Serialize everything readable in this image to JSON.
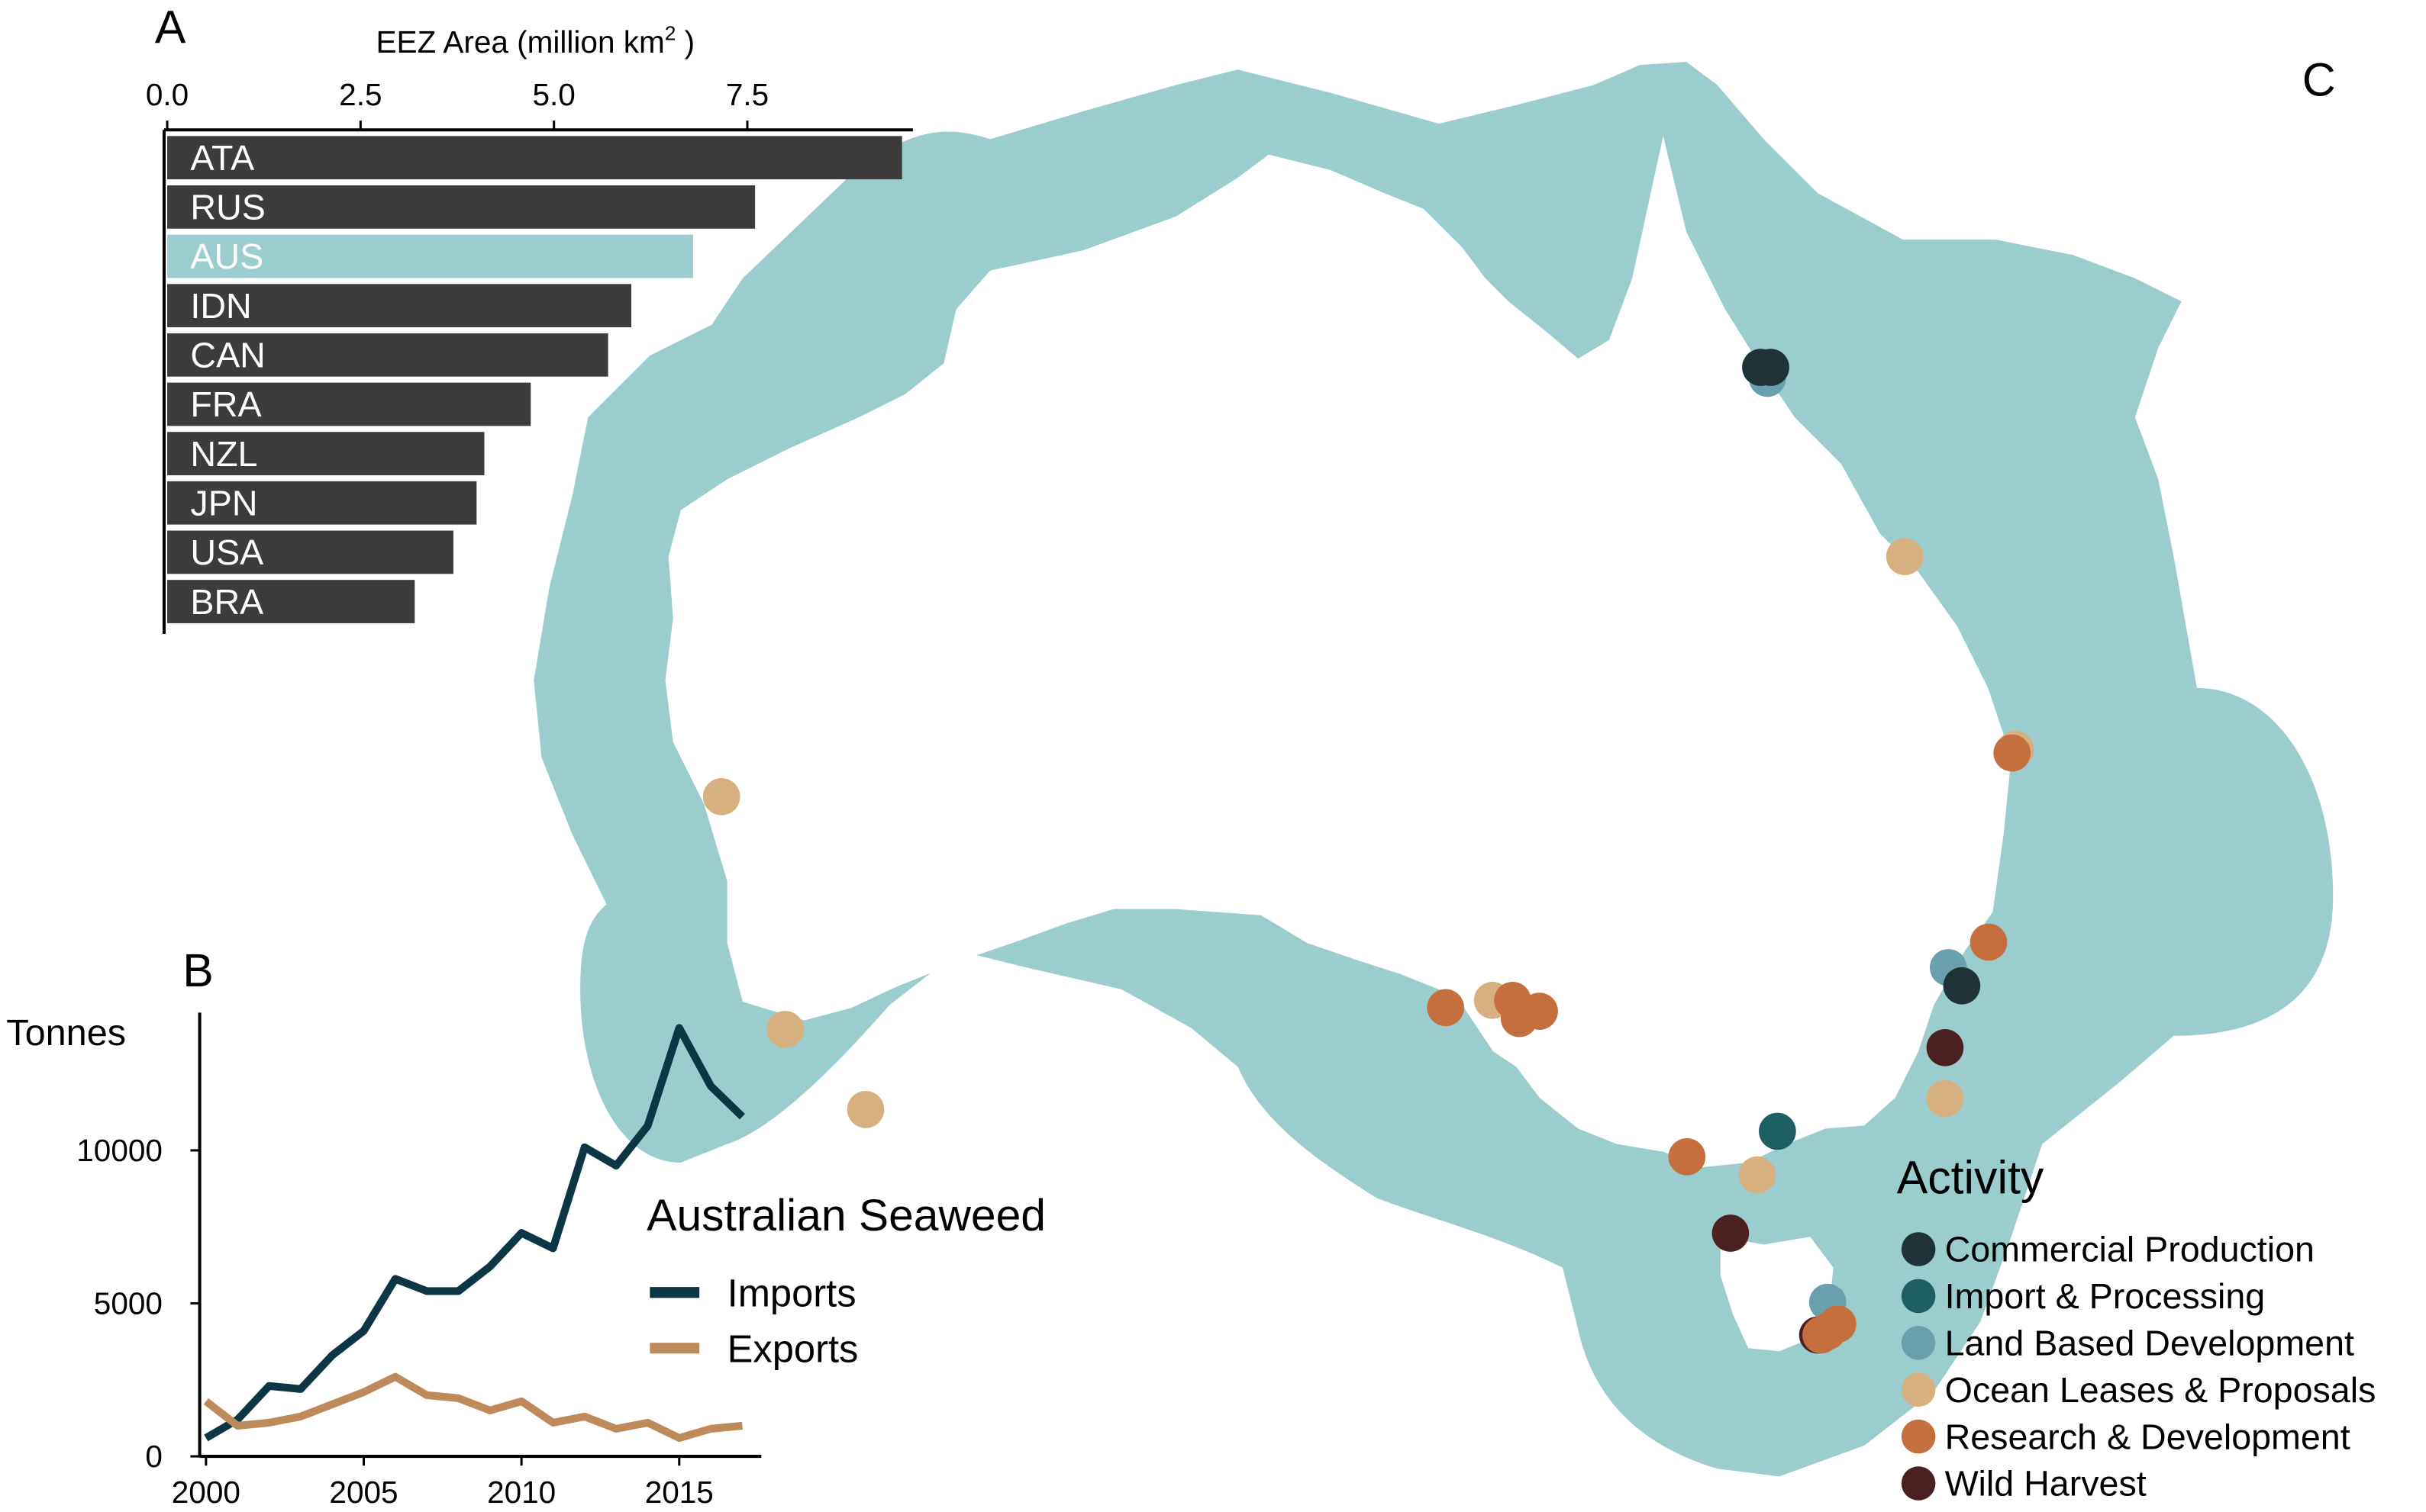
{
  "panels": {
    "a": {
      "letter": "A"
    },
    "b": {
      "letter": "B"
    },
    "c": {
      "letter": "C"
    }
  },
  "colors": {
    "bar_default": "#3c3c3c",
    "bar_highlight": "#9ccdce",
    "ocean": "#9ccdce",
    "imports": "#0d3645",
    "exports": "#bf8a5a"
  },
  "chart_data": [
    {
      "panel": "A",
      "type": "bar",
      "orientation": "horizontal",
      "xlabel": "EEZ Area (million km",
      "xlabel_sup": "2",
      "xlabel_close": " )",
      "xlim": [
        0,
        9.5
      ],
      "xticks": [
        0.0,
        2.5,
        5.0,
        7.5
      ],
      "xtick_labels": [
        "0.0",
        "2.5",
        "5.0",
        "7.5"
      ],
      "axis_position": "top",
      "categories": [
        "ATA",
        "RUS",
        "AUS",
        "IDN",
        "CAN",
        "FRA",
        "NZL",
        "JPN",
        "USA",
        "BRA"
      ],
      "values": [
        9.5,
        7.6,
        6.8,
        6.0,
        5.7,
        4.7,
        4.1,
        4.0,
        3.7,
        3.2
      ],
      "highlight": "AUS"
    },
    {
      "panel": "B",
      "type": "line",
      "ylabel": "Tonnes",
      "xlim": [
        1999.8,
        2017.6
      ],
      "ylim": [
        0,
        14500
      ],
      "xticks": [
        2000,
        2005,
        2010,
        2015
      ],
      "yticks": [
        0,
        5000,
        10000
      ],
      "legend_title": "Australian Seaweed",
      "legend_position": "right",
      "x": [
        2000,
        2001,
        2002,
        2003,
        2004,
        2005,
        2006,
        2007,
        2008,
        2009,
        2010,
        2011,
        2012,
        2013,
        2014,
        2015,
        2016,
        2017
      ],
      "series": [
        {
          "name": "Imports",
          "color_key": "imports",
          "values": [
            600,
            1200,
            2300,
            2200,
            3300,
            4100,
            5800,
            5400,
            5400,
            6200,
            7300,
            6800,
            10100,
            9500,
            10800,
            14000,
            12100,
            11100
          ]
        },
        {
          "name": "Exports",
          "color_key": "exports",
          "values": [
            1800,
            1000,
            1100,
            1300,
            1700,
            2100,
            2600,
            2000,
            1900,
            1500,
            1800,
            1100,
            1300,
            900,
            1100,
            600,
            900,
            1000
          ]
        }
      ]
    },
    {
      "panel": "C",
      "type": "scatter",
      "map": "Australia EEZ",
      "legend_title": "Activity",
      "legend_position": "bottom-right",
      "categories": [
        {
          "name": "Commercial Production",
          "color": "#1f3237"
        },
        {
          "name": "Import & Processing",
          "color": "#1e5f63"
        },
        {
          "name": "Land Based Development",
          "color": "#6a9fad"
        },
        {
          "name": "Ocean Leases & Proposals",
          "color": "#d6b07f"
        },
        {
          "name": "Research & Development",
          "color": "#c56f3e"
        },
        {
          "name": "Wild Harvest",
          "color": "#4a2020"
        }
      ],
      "points": [
        {
          "lon": 145.8,
          "lat": -17.0,
          "category": "Land Based Development"
        },
        {
          "lon": 145.6,
          "lat": -16.7,
          "category": "Commercial Production"
        },
        {
          "lon": 145.9,
          "lat": -16.7,
          "category": "Commercial Production"
        },
        {
          "lon": 149.9,
          "lat": -21.9,
          "category": "Ocean Leases & Proposals"
        },
        {
          "lon": 153.2,
          "lat": -27.2,
          "category": "Ocean Leases & Proposals"
        },
        {
          "lon": 153.1,
          "lat": -27.3,
          "category": "Research & Development"
        },
        {
          "lon": 114.6,
          "lat": -28.5,
          "category": "Ocean Leases & Proposals"
        },
        {
          "lon": 116.5,
          "lat": -34.9,
          "category": "Ocean Leases & Proposals"
        },
        {
          "lon": 118.9,
          "lat": -37.1,
          "category": "Ocean Leases & Proposals"
        },
        {
          "lon": 136.2,
          "lat": -34.3,
          "category": "Research & Development"
        },
        {
          "lon": 137.6,
          "lat": -34.1,
          "category": "Ocean Leases & Proposals"
        },
        {
          "lon": 138.2,
          "lat": -34.1,
          "category": "Research & Development"
        },
        {
          "lon": 138.4,
          "lat": -34.6,
          "category": "Research & Development"
        },
        {
          "lon": 139.0,
          "lat": -34.4,
          "category": "Research & Development"
        },
        {
          "lon": 152.4,
          "lat": -32.5,
          "category": "Research & Development"
        },
        {
          "lon": 151.2,
          "lat": -33.2,
          "category": "Land Based Development"
        },
        {
          "lon": 151.6,
          "lat": -33.7,
          "category": "Commercial Production"
        },
        {
          "lon": 151.1,
          "lat": -35.4,
          "category": "Wild Harvest"
        },
        {
          "lon": 151.1,
          "lat": -36.8,
          "category": "Ocean Leases & Proposals"
        },
        {
          "lon": 143.4,
          "lat": -38.4,
          "category": "Research & Development"
        },
        {
          "lon": 145.5,
          "lat": -38.9,
          "category": "Ocean Leases & Proposals"
        },
        {
          "lon": 146.1,
          "lat": -37.7,
          "category": "Import & Processing"
        },
        {
          "lon": 144.7,
          "lat": -40.5,
          "category": "Wild Harvest"
        },
        {
          "lon": 147.6,
          "lat": -42.4,
          "category": "Land Based Development"
        },
        {
          "lon": 147.3,
          "lat": -43.3,
          "category": "Wild Harvest"
        },
        {
          "lon": 147.4,
          "lat": -43.3,
          "category": "Research & Development"
        },
        {
          "lon": 147.6,
          "lat": -43.2,
          "category": "Research & Development"
        },
        {
          "lon": 147.9,
          "lat": -43.0,
          "category": "Research & Development"
        }
      ]
    }
  ]
}
